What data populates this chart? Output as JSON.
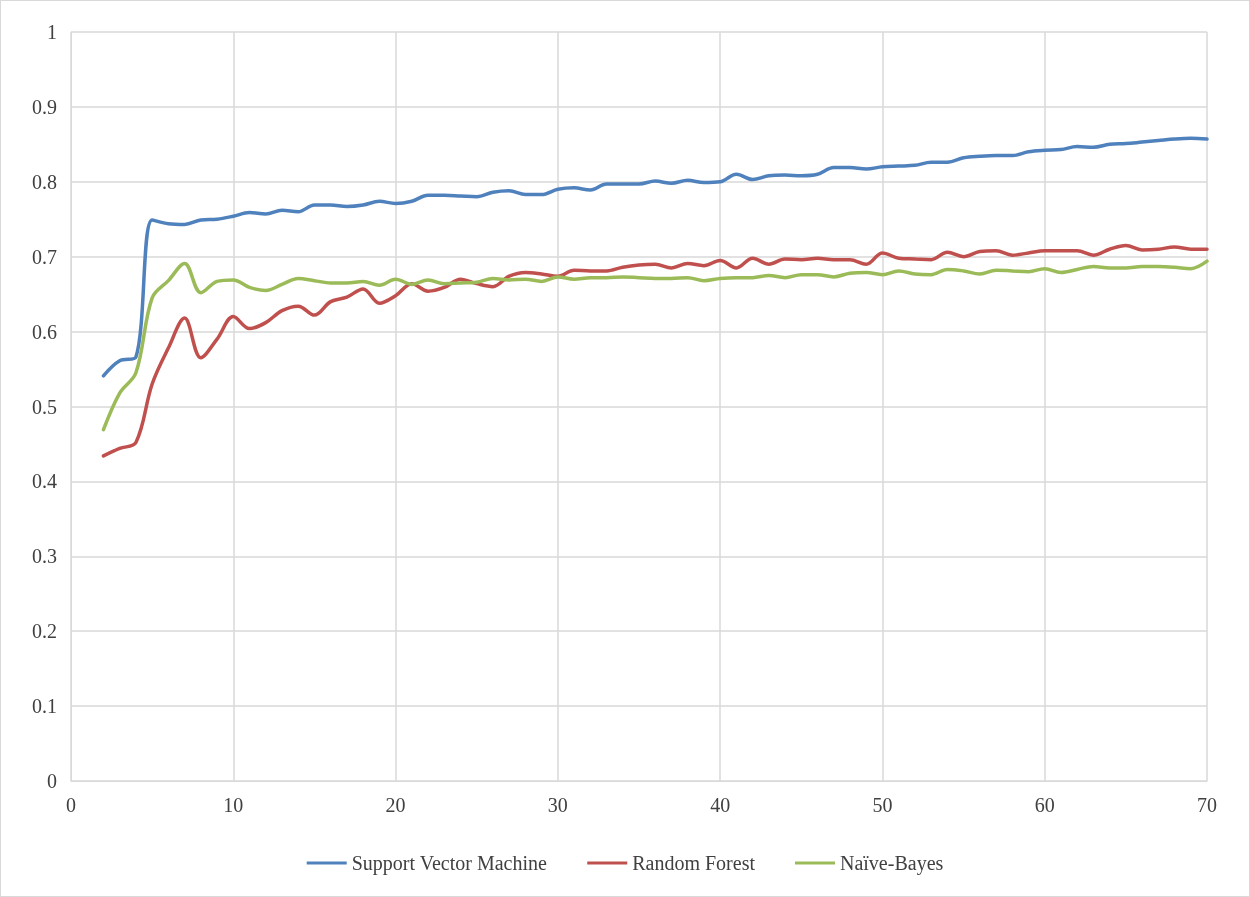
{
  "chart_data": {
    "type": "line",
    "x": [
      2,
      3,
      4,
      5,
      6,
      7,
      8,
      9,
      10,
      11,
      12,
      13,
      14,
      15,
      16,
      17,
      18,
      19,
      20,
      21,
      22,
      23,
      24,
      25,
      26,
      27,
      28,
      29,
      30,
      31,
      32,
      33,
      34,
      35,
      36,
      37,
      38,
      39,
      40,
      41,
      42,
      43,
      44,
      45,
      46,
      47,
      48,
      49,
      50,
      51,
      52,
      53,
      54,
      55,
      56,
      57,
      58,
      59,
      60,
      61,
      62,
      63,
      64,
      65,
      66,
      67,
      68,
      69,
      70
    ],
    "series": [
      {
        "name": "Support Vector Machine",
        "color": "#4f81bd",
        "values": [
          0.541,
          0.561,
          0.566,
          0.749,
          0.744,
          0.743,
          0.749,
          0.75,
          0.754,
          0.759,
          0.757,
          0.762,
          0.76,
          0.769,
          0.769,
          0.767,
          0.769,
          0.774,
          0.771,
          0.774,
          0.782,
          0.782,
          0.781,
          0.78,
          0.786,
          0.788,
          0.783,
          0.783,
          0.79,
          0.792,
          0.789,
          0.797,
          0.797,
          0.797,
          0.801,
          0.798,
          0.802,
          0.799,
          0.8,
          0.81,
          0.803,
          0.808,
          0.809,
          0.808,
          0.81,
          0.819,
          0.819,
          0.817,
          0.82,
          0.821,
          0.822,
          0.826,
          0.826,
          0.832,
          0.834,
          0.835,
          0.835,
          0.84,
          0.842,
          0.843,
          0.847,
          0.846,
          0.85,
          0.851,
          0.853,
          0.855,
          0.857,
          0.858,
          0.857
        ]
      },
      {
        "name": "Random Forest",
        "color": "#c0504d",
        "values": [
          0.434,
          0.444,
          0.452,
          0.53,
          0.578,
          0.618,
          0.565,
          0.59,
          0.62,
          0.604,
          0.612,
          0.628,
          0.634,
          0.622,
          0.64,
          0.646,
          0.657,
          0.638,
          0.648,
          0.664,
          0.654,
          0.659,
          0.67,
          0.664,
          0.66,
          0.674,
          0.679,
          0.677,
          0.674,
          0.682,
          0.681,
          0.681,
          0.686,
          0.689,
          0.69,
          0.685,
          0.691,
          0.688,
          0.695,
          0.685,
          0.698,
          0.69,
          0.697,
          0.696,
          0.698,
          0.696,
          0.696,
          0.69,
          0.705,
          0.698,
          0.697,
          0.696,
          0.706,
          0.7,
          0.707,
          0.708,
          0.702,
          0.705,
          0.708,
          0.708,
          0.708,
          0.702,
          0.71,
          0.715,
          0.709,
          0.71,
          0.713,
          0.71,
          0.71
        ]
      },
      {
        "name": "Naïve-Bayes",
        "color": "#9bbb59",
        "values": [
          0.469,
          0.518,
          0.545,
          0.645,
          0.668,
          0.691,
          0.652,
          0.667,
          0.669,
          0.659,
          0.655,
          0.663,
          0.671,
          0.668,
          0.665,
          0.665,
          0.667,
          0.662,
          0.67,
          0.663,
          0.669,
          0.664,
          0.665,
          0.666,
          0.671,
          0.669,
          0.67,
          0.667,
          0.673,
          0.67,
          0.672,
          0.672,
          0.673,
          0.672,
          0.671,
          0.671,
          0.672,
          0.668,
          0.671,
          0.672,
          0.672,
          0.675,
          0.672,
          0.676,
          0.676,
          0.673,
          0.678,
          0.679,
          0.676,
          0.681,
          0.677,
          0.676,
          0.683,
          0.681,
          0.677,
          0.682,
          0.681,
          0.68,
          0.684,
          0.679,
          0.683,
          0.687,
          0.685,
          0.685,
          0.687,
          0.687,
          0.686,
          0.684,
          0.694
        ]
      }
    ],
    "xlim": [
      0,
      70
    ],
    "xticks": [
      0,
      10,
      20,
      30,
      40,
      50,
      60,
      70
    ],
    "ylim": [
      0,
      1
    ],
    "yticks": [
      0,
      0.1,
      0.2,
      0.3,
      0.4,
      0.5,
      0.6,
      0.7,
      0.8,
      0.9,
      1
    ],
    "grid": true,
    "legend": "bottom",
    "marker": "none",
    "line_style": "solid"
  }
}
